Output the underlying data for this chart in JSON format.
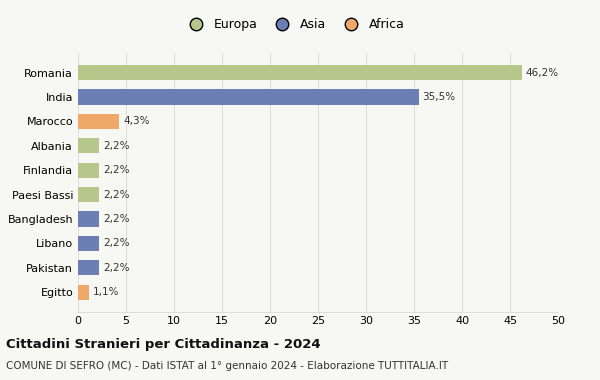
{
  "categories": [
    "Romania",
    "India",
    "Marocco",
    "Albania",
    "Finlandia",
    "Paesi Bassi",
    "Bangladesh",
    "Libano",
    "Pakistan",
    "Egitto"
  ],
  "values": [
    46.2,
    35.5,
    4.3,
    2.2,
    2.2,
    2.2,
    2.2,
    2.2,
    2.2,
    1.1
  ],
  "labels": [
    "46,2%",
    "35,5%",
    "4,3%",
    "2,2%",
    "2,2%",
    "2,2%",
    "2,2%",
    "2,2%",
    "2,2%",
    "1,1%"
  ],
  "colors": [
    "#b5c78a",
    "#6b7fb5",
    "#f0a868",
    "#b5c78a",
    "#b5c78a",
    "#b5c78a",
    "#6b7fb5",
    "#6b7fb5",
    "#6b7fb5",
    "#f0a868"
  ],
  "legend_labels": [
    "Europa",
    "Asia",
    "Africa"
  ],
  "legend_colors": [
    "#b5c78a",
    "#6b7fb5",
    "#f0a868"
  ],
  "title": "Cittadini Stranieri per Cittadinanza - 2024",
  "subtitle": "COMUNE DI SEFRO (MC) - Dati ISTAT al 1° gennaio 2024 - Elaborazione TUTTITALIA.IT",
  "xlim": [
    0,
    50
  ],
  "xticks": [
    0,
    5,
    10,
    15,
    20,
    25,
    30,
    35,
    40,
    45,
    50
  ],
  "bg_color": "#f7f7f3",
  "grid_color": "#dddddd"
}
